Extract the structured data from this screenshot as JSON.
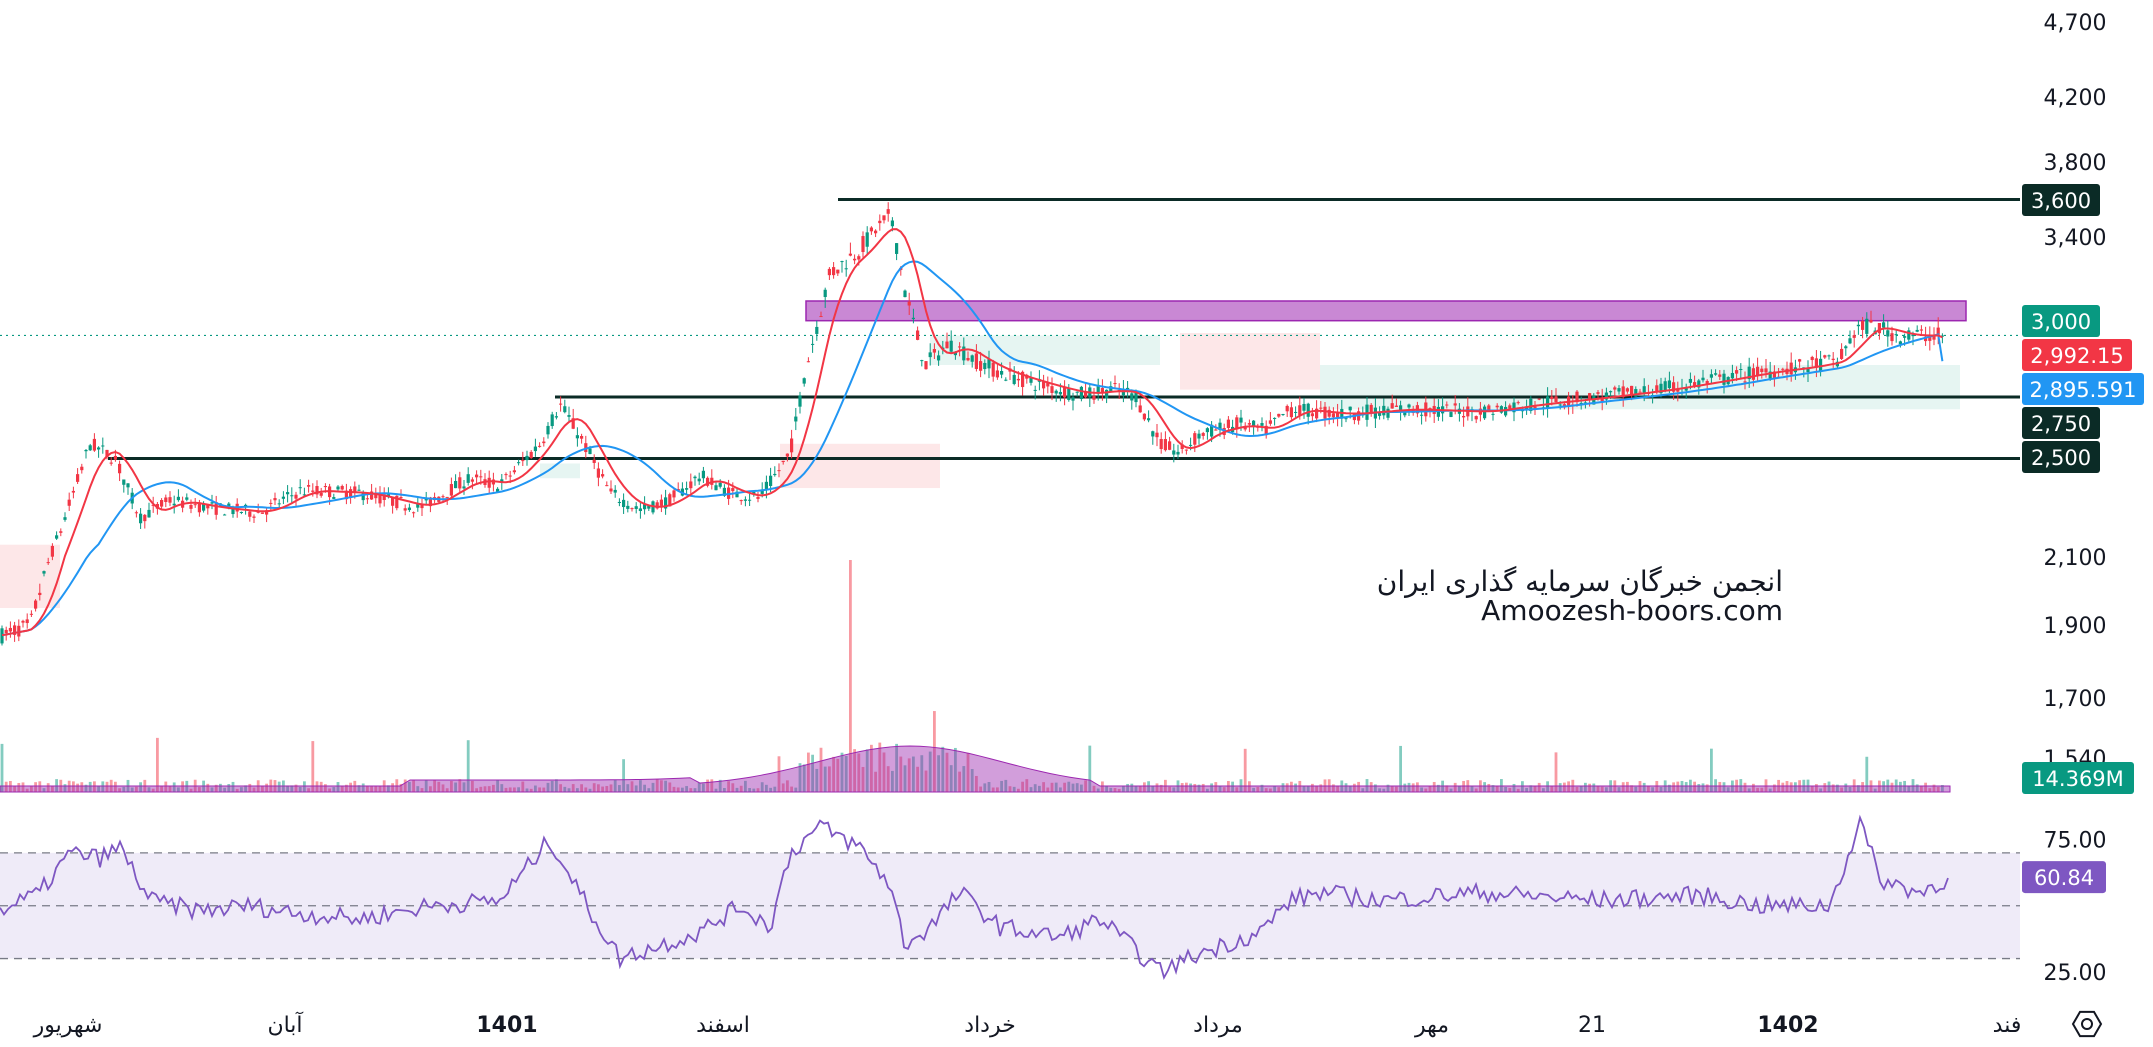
{
  "watermark": {
    "line1": "انجمن خبرگان سرمایه گذاری ایران",
    "line2": "Amoozesh-boors.com"
  },
  "colors": {
    "up": "#089981",
    "down": "#f23645",
    "ma_fast": "#f23645",
    "ma_slow": "#2196f3",
    "zone": "#9c27b0",
    "level_line": "#0b2b26",
    "rsi": "#7e57c2",
    "volume_ma": "#9c27b0"
  },
  "chart_data": [
    {
      "type": "candlestick",
      "panel": "price",
      "y_ticks": [
        "4,700",
        "4,200",
        "3,800",
        "3,400",
        "2,100",
        "1,900",
        "1,700",
        "1,540"
      ],
      "x_labels": [
        "شهریور",
        "آبان",
        "1401",
        "اسفند",
        "خرداد",
        "مرداد",
        "مهر",
        "21",
        "1402",
        "فند"
      ],
      "x_labels_bold": [
        "1401",
        "1402"
      ],
      "series": [
        {
          "name": "",
          "kind": "ohlc",
          "last_close": 3000
        },
        {
          "name": "",
          "kind": "moving_average",
          "last_value": 2992.15
        },
        {
          "name": "",
          "kind": "moving_average",
          "last_value": 2895.591
        }
      ],
      "levels": [
        3600,
        2750,
        2500
      ],
      "resistance_zone": [
        3060,
        3140
      ],
      "price_tags": [
        {
          "label": "3,600",
          "style": "level"
        },
        {
          "label": "3,000",
          "style": "last"
        },
        {
          "label": "2,992.15",
          "style": "ma_fast"
        },
        {
          "label": "2,895.591",
          "style": "ma_slow"
        },
        {
          "label": "2,750",
          "style": "level"
        },
        {
          "label": "2,500",
          "style": "level"
        }
      ]
    },
    {
      "type": "bar",
      "panel": "volume",
      "last_value_label": "14.369M"
    },
    {
      "type": "line",
      "panel": "rsi",
      "y_ticks": [
        "75.00",
        "25.00"
      ],
      "bands": [
        70,
        50,
        30
      ],
      "ylim": [
        20,
        90
      ],
      "last_value": 60.84,
      "last_value_label": "60.84"
    }
  ]
}
